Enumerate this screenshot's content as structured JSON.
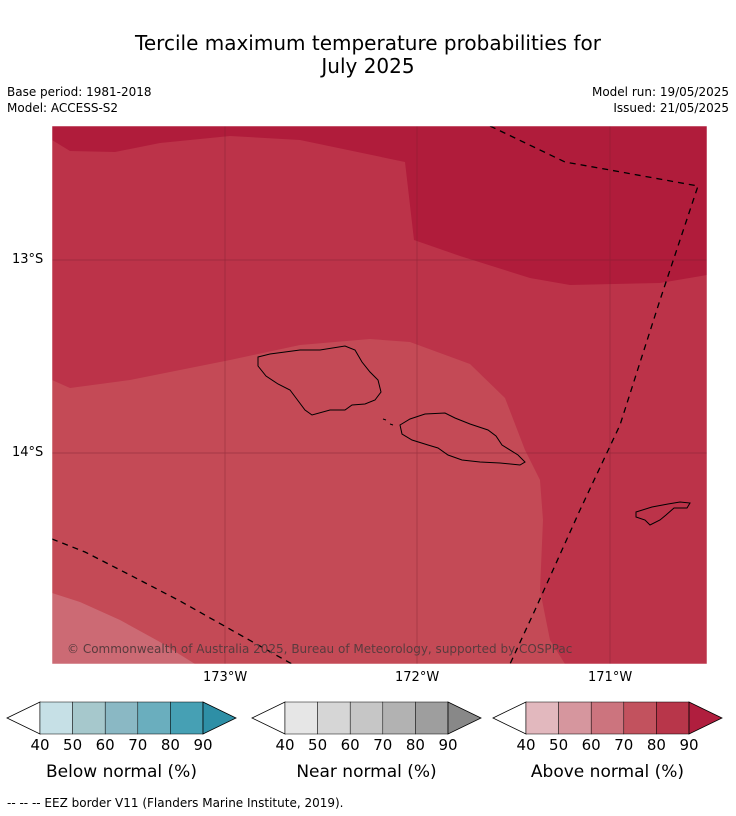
{
  "title_line1": "Tercile maximum temperature probabilities for",
  "title_line2": "July 2025",
  "base_period": "Base period: 1981-2018",
  "model": "Model: ACCESS-S2",
  "model_run": "Model run: 19/05/2025",
  "issued": "Issued: 21/05/2025",
  "copyright": "© Commonwealth of Australia 2025, Bureau of Meteorology, supported by COSPPac",
  "lat_labels": [
    "13°S",
    "14°S"
  ],
  "lon_labels": [
    "173°W",
    "172°W",
    "171°W"
  ],
  "colorbars": [
    {
      "name": "Below normal (%)",
      "ticks": [
        "40",
        "50",
        "60",
        "70",
        "80",
        "90"
      ],
      "colors": [
        "#ffffff",
        "#c6e0e6",
        "#a6c8cc",
        "#8ab8c4",
        "#6aaebe",
        "#46a0b4",
        "#2e8fa6"
      ]
    },
    {
      "name": "Near normal (%)",
      "ticks": [
        "40",
        "50",
        "60",
        "70",
        "80",
        "90"
      ],
      "colors": [
        "#ffffff",
        "#e6e6e6",
        "#d6d6d6",
        "#c6c6c6",
        "#b2b2b2",
        "#9e9e9e",
        "#888888"
      ]
    },
    {
      "name": "Above normal (%)",
      "ticks": [
        "40",
        "50",
        "60",
        "70",
        "80",
        "90"
      ],
      "colors": [
        "#ffffff",
        "#e2b8be",
        "#d6969e",
        "#cc747e",
        "#c2525e",
        "#b8364a",
        "#b01e3e"
      ]
    }
  ],
  "footer": "--  --  -- EEZ border V11 (Flanders Marine Institute, 2019).",
  "zone_colors": {
    "dark": "#b01c3b",
    "mid": "#bc3349",
    "light": "#c44a56",
    "lightest": "#cc6a74"
  }
}
